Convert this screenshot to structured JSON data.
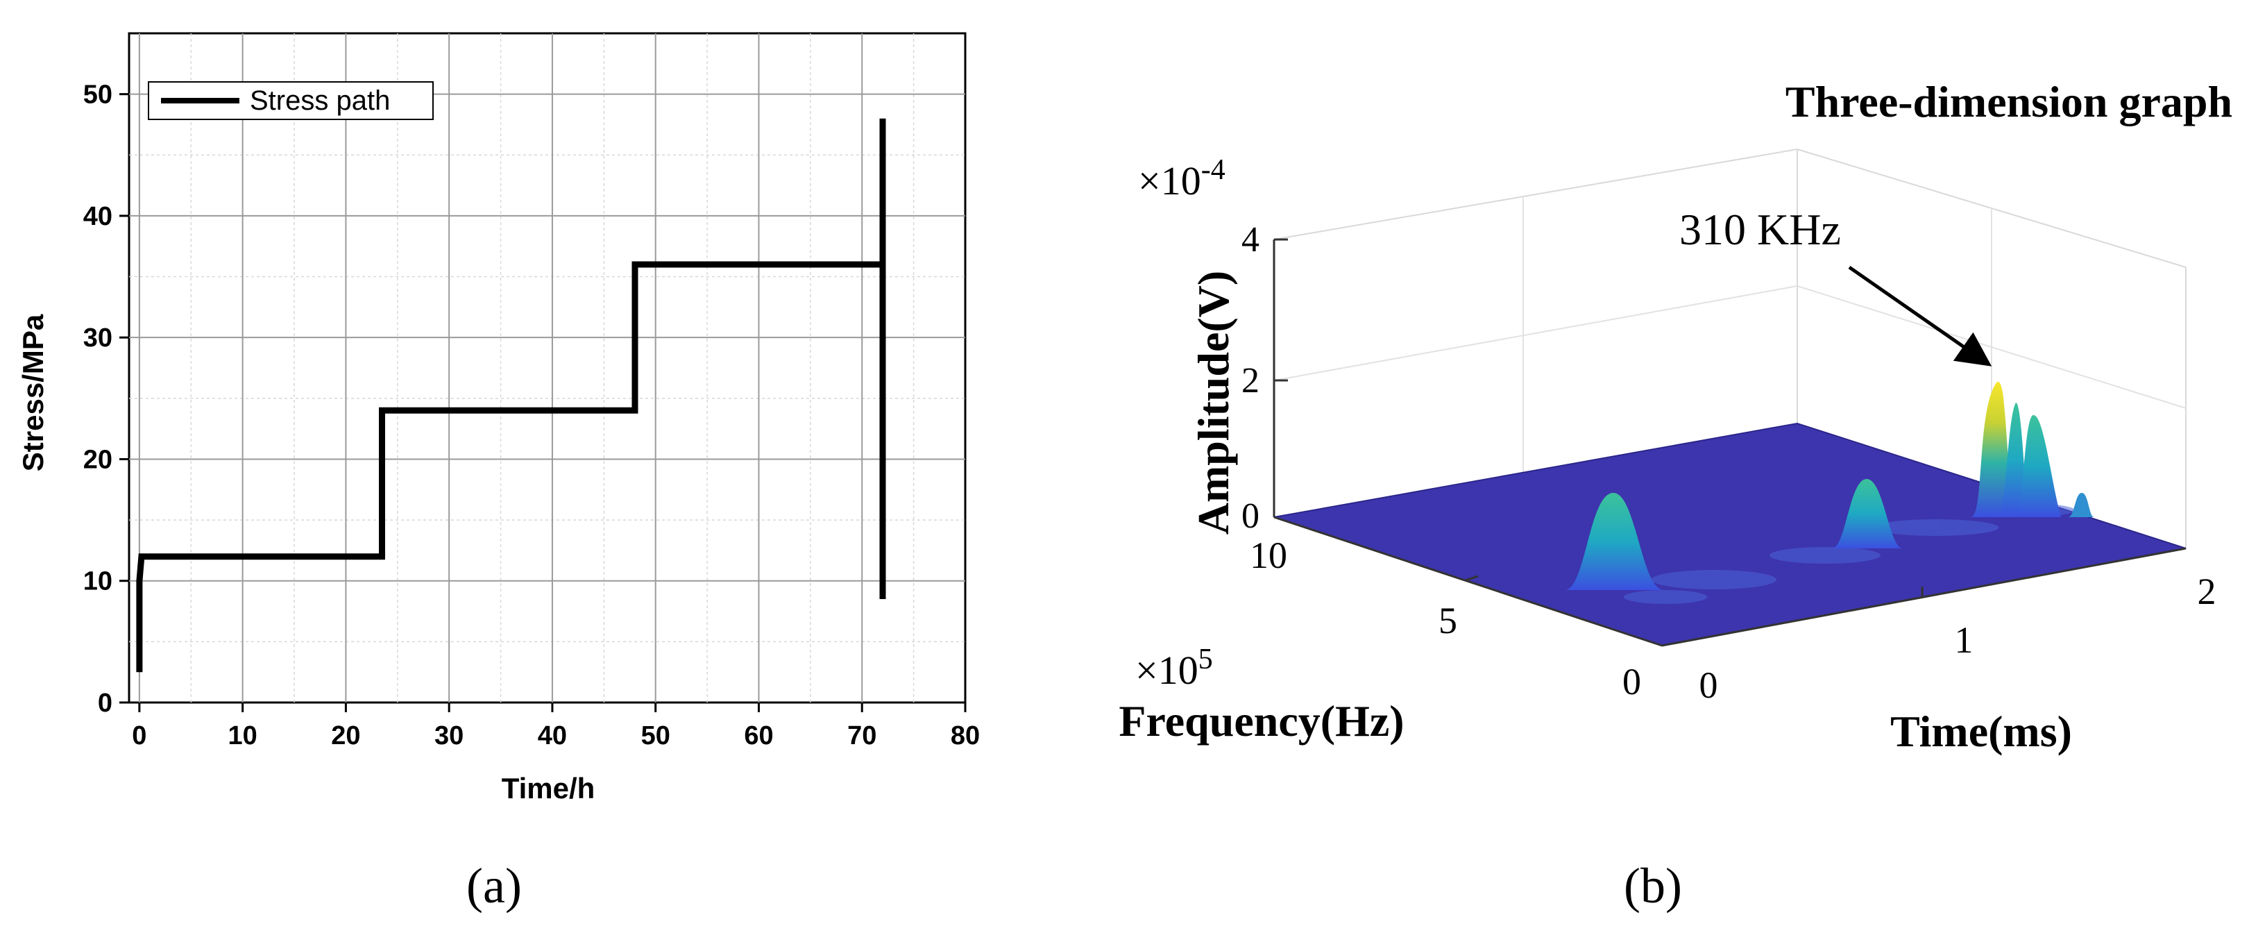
{
  "chart_data": [
    {
      "panel": "(a)",
      "type": "line",
      "title": "",
      "xlabel": "Time/h",
      "ylabel": "Stress/MPa",
      "xlim": [
        -1,
        80
      ],
      "ylim": [
        0,
        55
      ],
      "xticks": [
        "0",
        "10",
        "20",
        "30",
        "40",
        "50",
        "60",
        "70",
        "80"
      ],
      "yticks": [
        "0",
        "10",
        "20",
        "30",
        "40",
        "50"
      ],
      "grid": true,
      "legend_position": "top-left",
      "series": [
        {
          "name": "Stress path",
          "color": "#000000",
          "x": [
            0,
            0,
            0.2,
            23.5,
            23.5,
            48,
            48,
            72,
            72,
            72
          ],
          "y": [
            2.5,
            10,
            12,
            12,
            24,
            24,
            36,
            36,
            48,
            8.5
          ]
        }
      ]
    },
    {
      "panel": "(b)",
      "type": "surface-3d",
      "title": "Three-dimension graph",
      "xlabel": "Time(ms)",
      "ylabel": "Frequency(Hz)",
      "zlabel": "Amplitude(V)",
      "x_exponent_label": "",
      "y_exponent_base": "×10",
      "y_exponent_power": "5",
      "z_exponent_base": "×10",
      "z_exponent_power": "-4",
      "xlim": [
        0,
        2
      ],
      "ylim": [
        0,
        10
      ],
      "zlim": [
        0,
        4
      ],
      "xticks": [
        "0",
        "1",
        "2"
      ],
      "yticks": [
        "0",
        "5",
        "10"
      ],
      "zticks": [
        "0",
        "2",
        "4"
      ],
      "colormap": "parula",
      "annotation": "310 KHz",
      "peaks": [
        {
          "time_ms": 0.35,
          "freq_e5": 5.8,
          "amp_e4": 1.2
        },
        {
          "time_ms": 0.85,
          "freq_e5": 3.5,
          "amp_e4": 0.9
        },
        {
          "time_ms": 1.5,
          "freq_e5": 3.1,
          "amp_e4": 2.2
        },
        {
          "time_ms": 1.55,
          "freq_e5": 2.6,
          "amp_e4": 1.6
        },
        {
          "time_ms": 1.65,
          "freq_e5": 2.0,
          "amp_e4": 1.4
        }
      ]
    }
  ],
  "captions": {
    "a": "(a)",
    "b": "(b)"
  }
}
